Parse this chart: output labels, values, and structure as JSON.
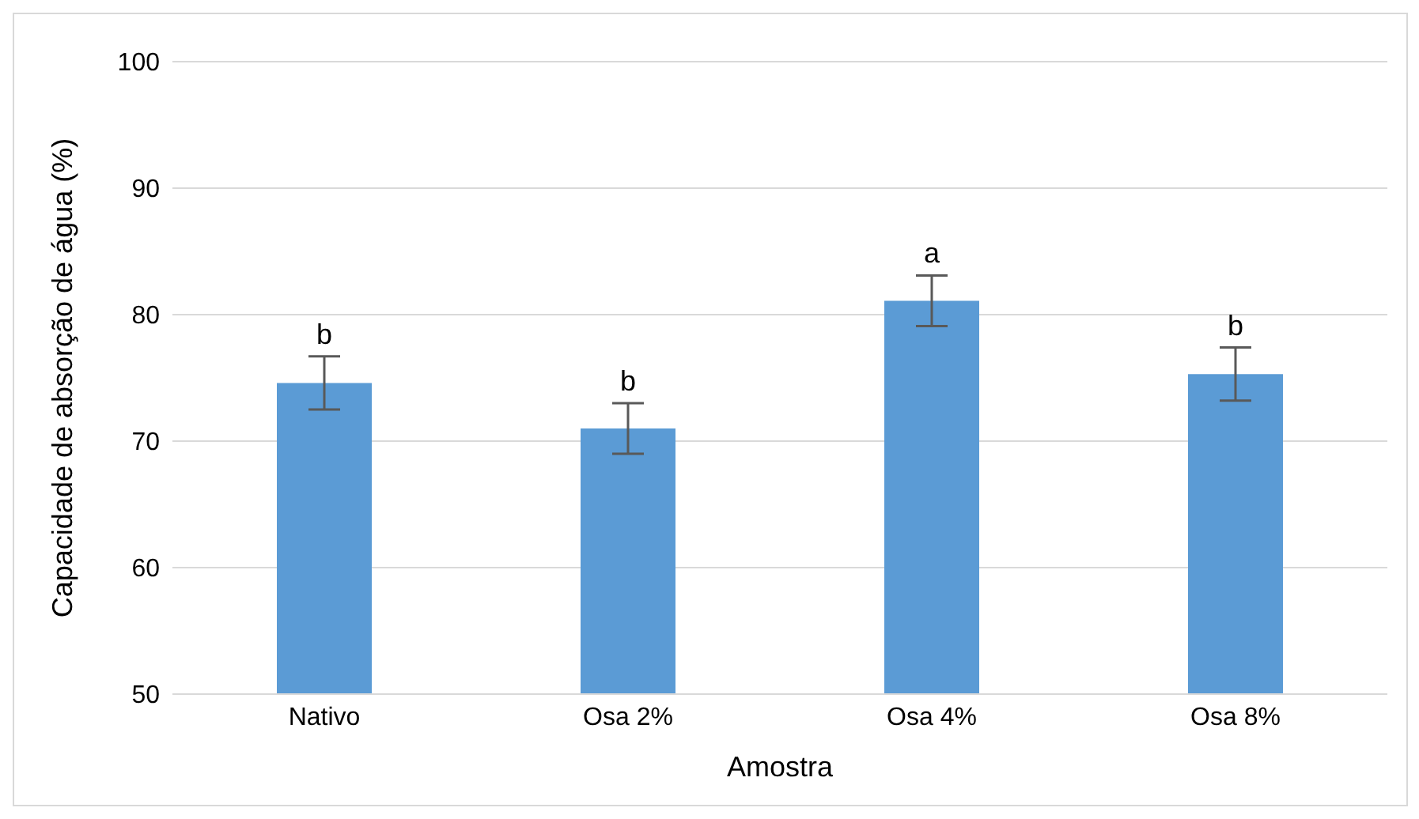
{
  "chart_data": {
    "type": "bar",
    "categories": [
      "Nativo",
      "Osa 2%",
      "Osa 4%",
      "Osa 8%"
    ],
    "values": [
      74.6,
      71.0,
      81.1,
      75.3
    ],
    "errors": [
      2.1,
      2.0,
      2.0,
      2.1
    ],
    "color": "#5b9bd5",
    "xlabel": "Amostra",
    "ylabel": "Capacidade de absorção de água (%)",
    "ylim": [
      50,
      100
    ],
    "yticks": [
      50,
      60,
      70,
      80,
      90,
      100
    ],
    "grid": "y",
    "annotations": [
      {
        "text": "b",
        "x": "Nativo",
        "y": 76.7
      },
      {
        "text": "b",
        "x": "Osa 2%",
        "y": 73.0
      },
      {
        "text": "a",
        "x": "Osa 4%",
        "y": 83.1
      },
      {
        "text": "b",
        "x": "Osa 8%",
        "y": 77.4
      }
    ]
  }
}
